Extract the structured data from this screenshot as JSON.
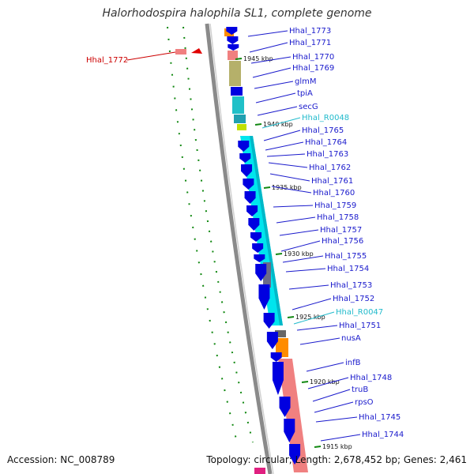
{
  "title": "Halorhodospira halophila SL1, complete genome",
  "footer": {
    "accession": "Accession: NC_008789",
    "info": "Topology: circular; Length: 2,678,452 bp; Genes: 2,461"
  },
  "colors": {
    "cds_arrow": "#0000e0",
    "label_blue": "#1a1acc",
    "label_cyan": "#22bbcc",
    "label_red": "#cc0000",
    "backbone": "#888888",
    "tick_green": "#118811",
    "cyan_block": "#00e5ee",
    "salmon_block": "#f08080",
    "olive_block": "#b5b06a",
    "orange_block": "#ff8c00"
  },
  "ticks": [
    "1945 kbp",
    "1940 kbp",
    "1935 kbp",
    "1930 kbp",
    "1925 kbp",
    "1920 kbp",
    "1915 kbp"
  ],
  "genes": [
    {
      "label": "Hhal_1773",
      "kind": "cds"
    },
    {
      "label": "Hhal_1771",
      "kind": "cds"
    },
    {
      "label": "Hhal_1770",
      "kind": "cds"
    },
    {
      "label": "Hhal_1769",
      "kind": "cds"
    },
    {
      "label": "glmM",
      "kind": "cds"
    },
    {
      "label": "tpiA",
      "kind": "cds"
    },
    {
      "label": "secG",
      "kind": "cds"
    },
    {
      "label": "Hhal_R0048",
      "kind": "rna"
    },
    {
      "label": "Hhal_1765",
      "kind": "cds"
    },
    {
      "label": "Hhal_1764",
      "kind": "cds"
    },
    {
      "label": "Hhal_1763",
      "kind": "cds"
    },
    {
      "label": "Hhal_1762",
      "kind": "cds"
    },
    {
      "label": "Hhal_1761",
      "kind": "cds"
    },
    {
      "label": "Hhal_1760",
      "kind": "cds"
    },
    {
      "label": "Hhal_1759",
      "kind": "cds"
    },
    {
      "label": "Hhal_1758",
      "kind": "cds"
    },
    {
      "label": "Hhal_1757",
      "kind": "cds"
    },
    {
      "label": "Hhal_1756",
      "kind": "cds"
    },
    {
      "label": "Hhal_1755",
      "kind": "cds"
    },
    {
      "label": "Hhal_1754",
      "kind": "cds"
    },
    {
      "label": "Hhal_1753",
      "kind": "cds"
    },
    {
      "label": "Hhal_1752",
      "kind": "cds"
    },
    {
      "label": "Hhal_R0047",
      "kind": "rna"
    },
    {
      "label": "Hhal_1751",
      "kind": "cds"
    },
    {
      "label": "nusA",
      "kind": "cds"
    },
    {
      "label": "infB",
      "kind": "cds"
    },
    {
      "label": "Hhal_1748",
      "kind": "cds"
    },
    {
      "label": "truB",
      "kind": "cds"
    },
    {
      "label": "rpsO",
      "kind": "cds"
    },
    {
      "label": "Hhal_1745",
      "kind": "cds"
    },
    {
      "label": "Hhal_1744",
      "kind": "cds"
    }
  ],
  "reverse_gene": {
    "label": "Hhal_1772",
    "kind": "reverse"
  }
}
